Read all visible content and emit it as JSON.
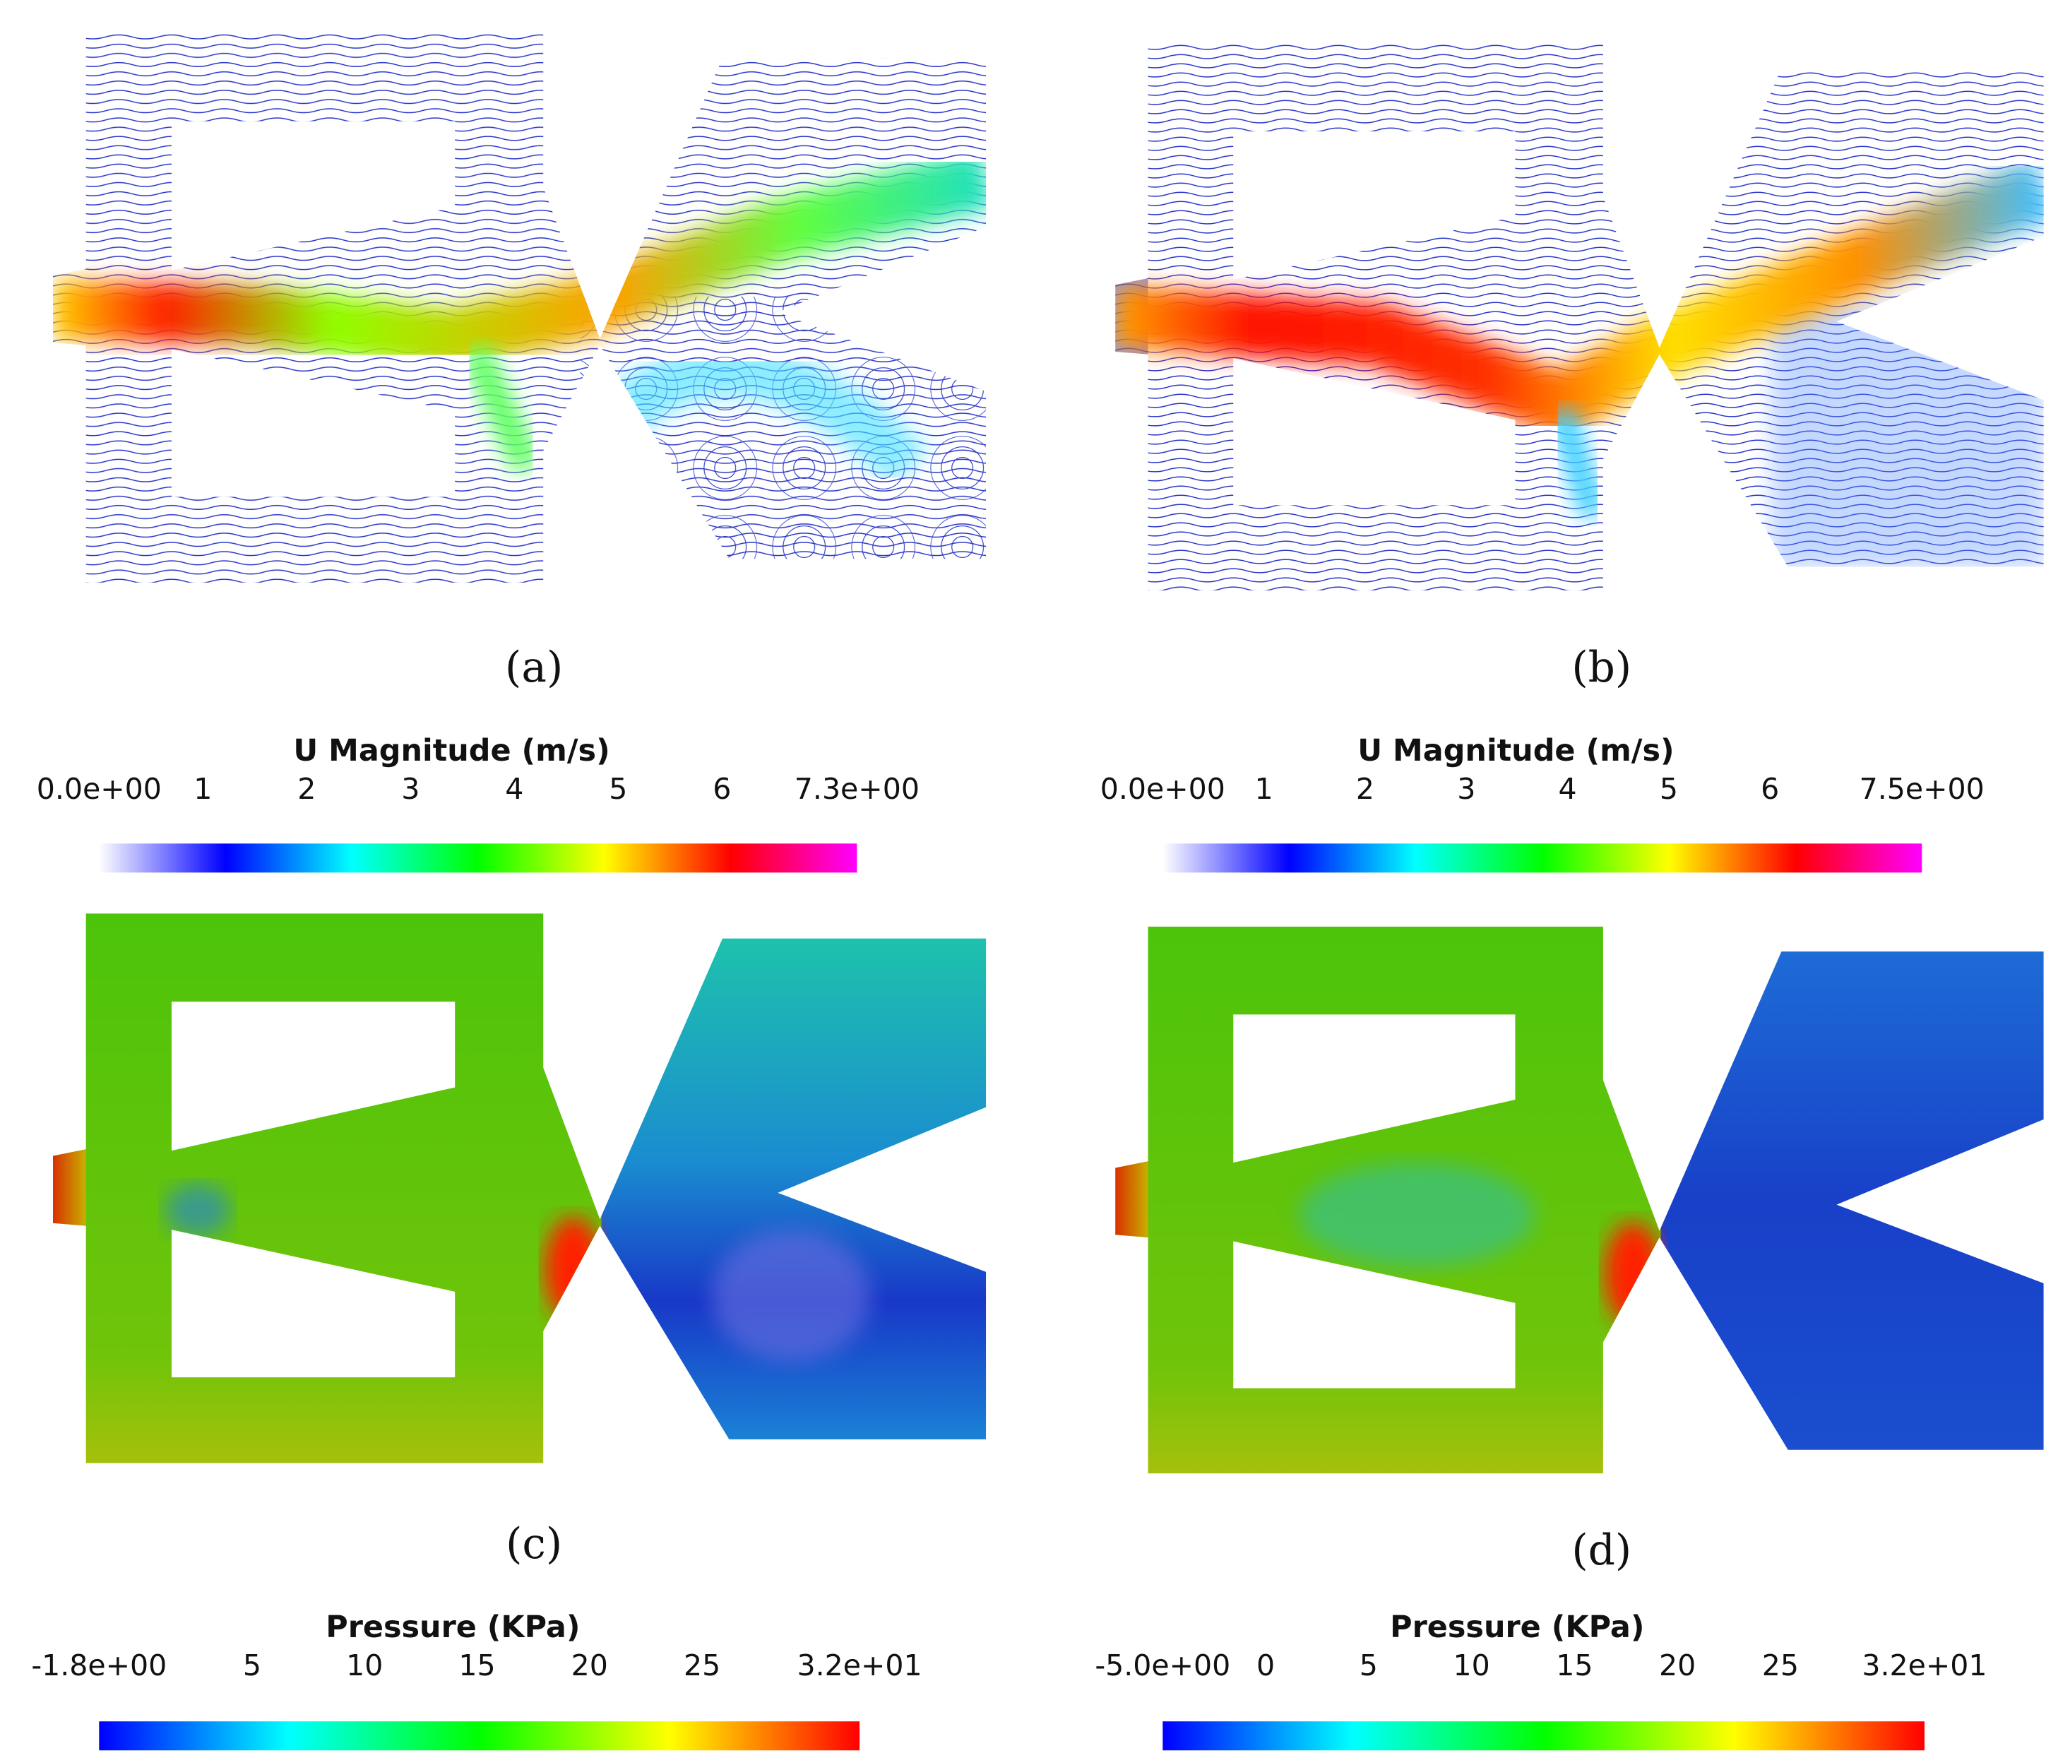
{
  "panels": [
    {
      "label": "(a)"
    },
    {
      "label": "(b)"
    },
    {
      "label": "(c)"
    },
    {
      "label": "(d)"
    }
  ],
  "colorbars": [
    {
      "title": "U Magnitude (m/s)",
      "range": [
        0,
        7.3
      ],
      "ticks": [
        {
          "value": 0,
          "label": "0.0e+00"
        },
        1,
        2,
        3,
        4,
        5,
        6,
        {
          "value": 7.3,
          "label": "7.3e+00"
        }
      ],
      "colors": [
        "#ffffff",
        "#0000ff",
        "#00ffff",
        "#00ff00",
        "#ffff00",
        "#ff0000",
        "#ff00ff"
      ]
    },
    {
      "title": "U Magnitude (m/s)",
      "range": [
        0,
        7.5
      ],
      "ticks": [
        {
          "value": 0,
          "label": "0.0e+00"
        },
        1,
        2,
        3,
        4,
        5,
        6,
        {
          "value": 7.5,
          "label": "7.5e+00"
        }
      ],
      "colors": [
        "#ffffff",
        "#0000ff",
        "#00ffff",
        "#00ff00",
        "#ffff00",
        "#ff0000",
        "#ff00ff"
      ]
    },
    {
      "title": "Pressure (KPa)",
      "range": [
        -1.8,
        32
      ],
      "ticks": [
        {
          "value": -1.8,
          "label": "-1.8e+00"
        },
        5,
        10,
        15,
        20,
        25,
        {
          "value": 32,
          "label": "3.2e+01"
        }
      ],
      "colors": [
        "#0000ff",
        "#00ffff",
        "#00ff00",
        "#ffff00",
        "#ff0000"
      ]
    },
    {
      "title": "Pressure (KPa)",
      "range": [
        -5,
        32
      ],
      "ticks": [
        {
          "value": -5,
          "label": "-5.0e+00"
        },
        0,
        5,
        10,
        15,
        20,
        25,
        {
          "value": 32,
          "label": "3.2e+01"
        }
      ],
      "colors": [
        "#0000ff",
        "#00ffff",
        "#00ff00",
        "#ffff00",
        "#ff0000"
      ]
    }
  ]
}
